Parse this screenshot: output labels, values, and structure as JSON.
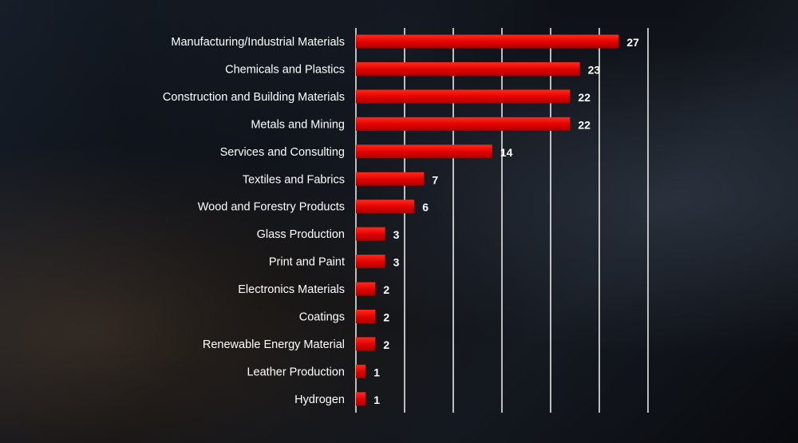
{
  "chart_data": {
    "type": "bar",
    "orientation": "horizontal",
    "categories": [
      "Manufacturing/Industrial Materials",
      "Chemicals and Plastics",
      "Construction and Building Materials",
      "Metals and Mining",
      "Services and Consulting",
      "Textiles and Fabrics",
      "Wood and Forestry Products",
      "Glass Production",
      "Print and Paint",
      "Electronics Materials",
      "Coatings",
      "Renewable Energy Material",
      "Leather Production",
      "Hydrogen"
    ],
    "values": [
      27,
      23,
      22,
      22,
      14,
      7,
      6,
      3,
      3,
      2,
      2,
      2,
      1,
      1
    ],
    "value_labels": [
      "27",
      "23",
      "22",
      "22",
      "14",
      "7",
      "6",
      "3",
      "3",
      "2",
      "2",
      "2",
      "1",
      "1"
    ],
    "xlim": [
      0,
      30
    ],
    "grid": true,
    "bar_color": "#e00000",
    "grid_color": "#ffffff",
    "text_color": "#ffffff"
  }
}
